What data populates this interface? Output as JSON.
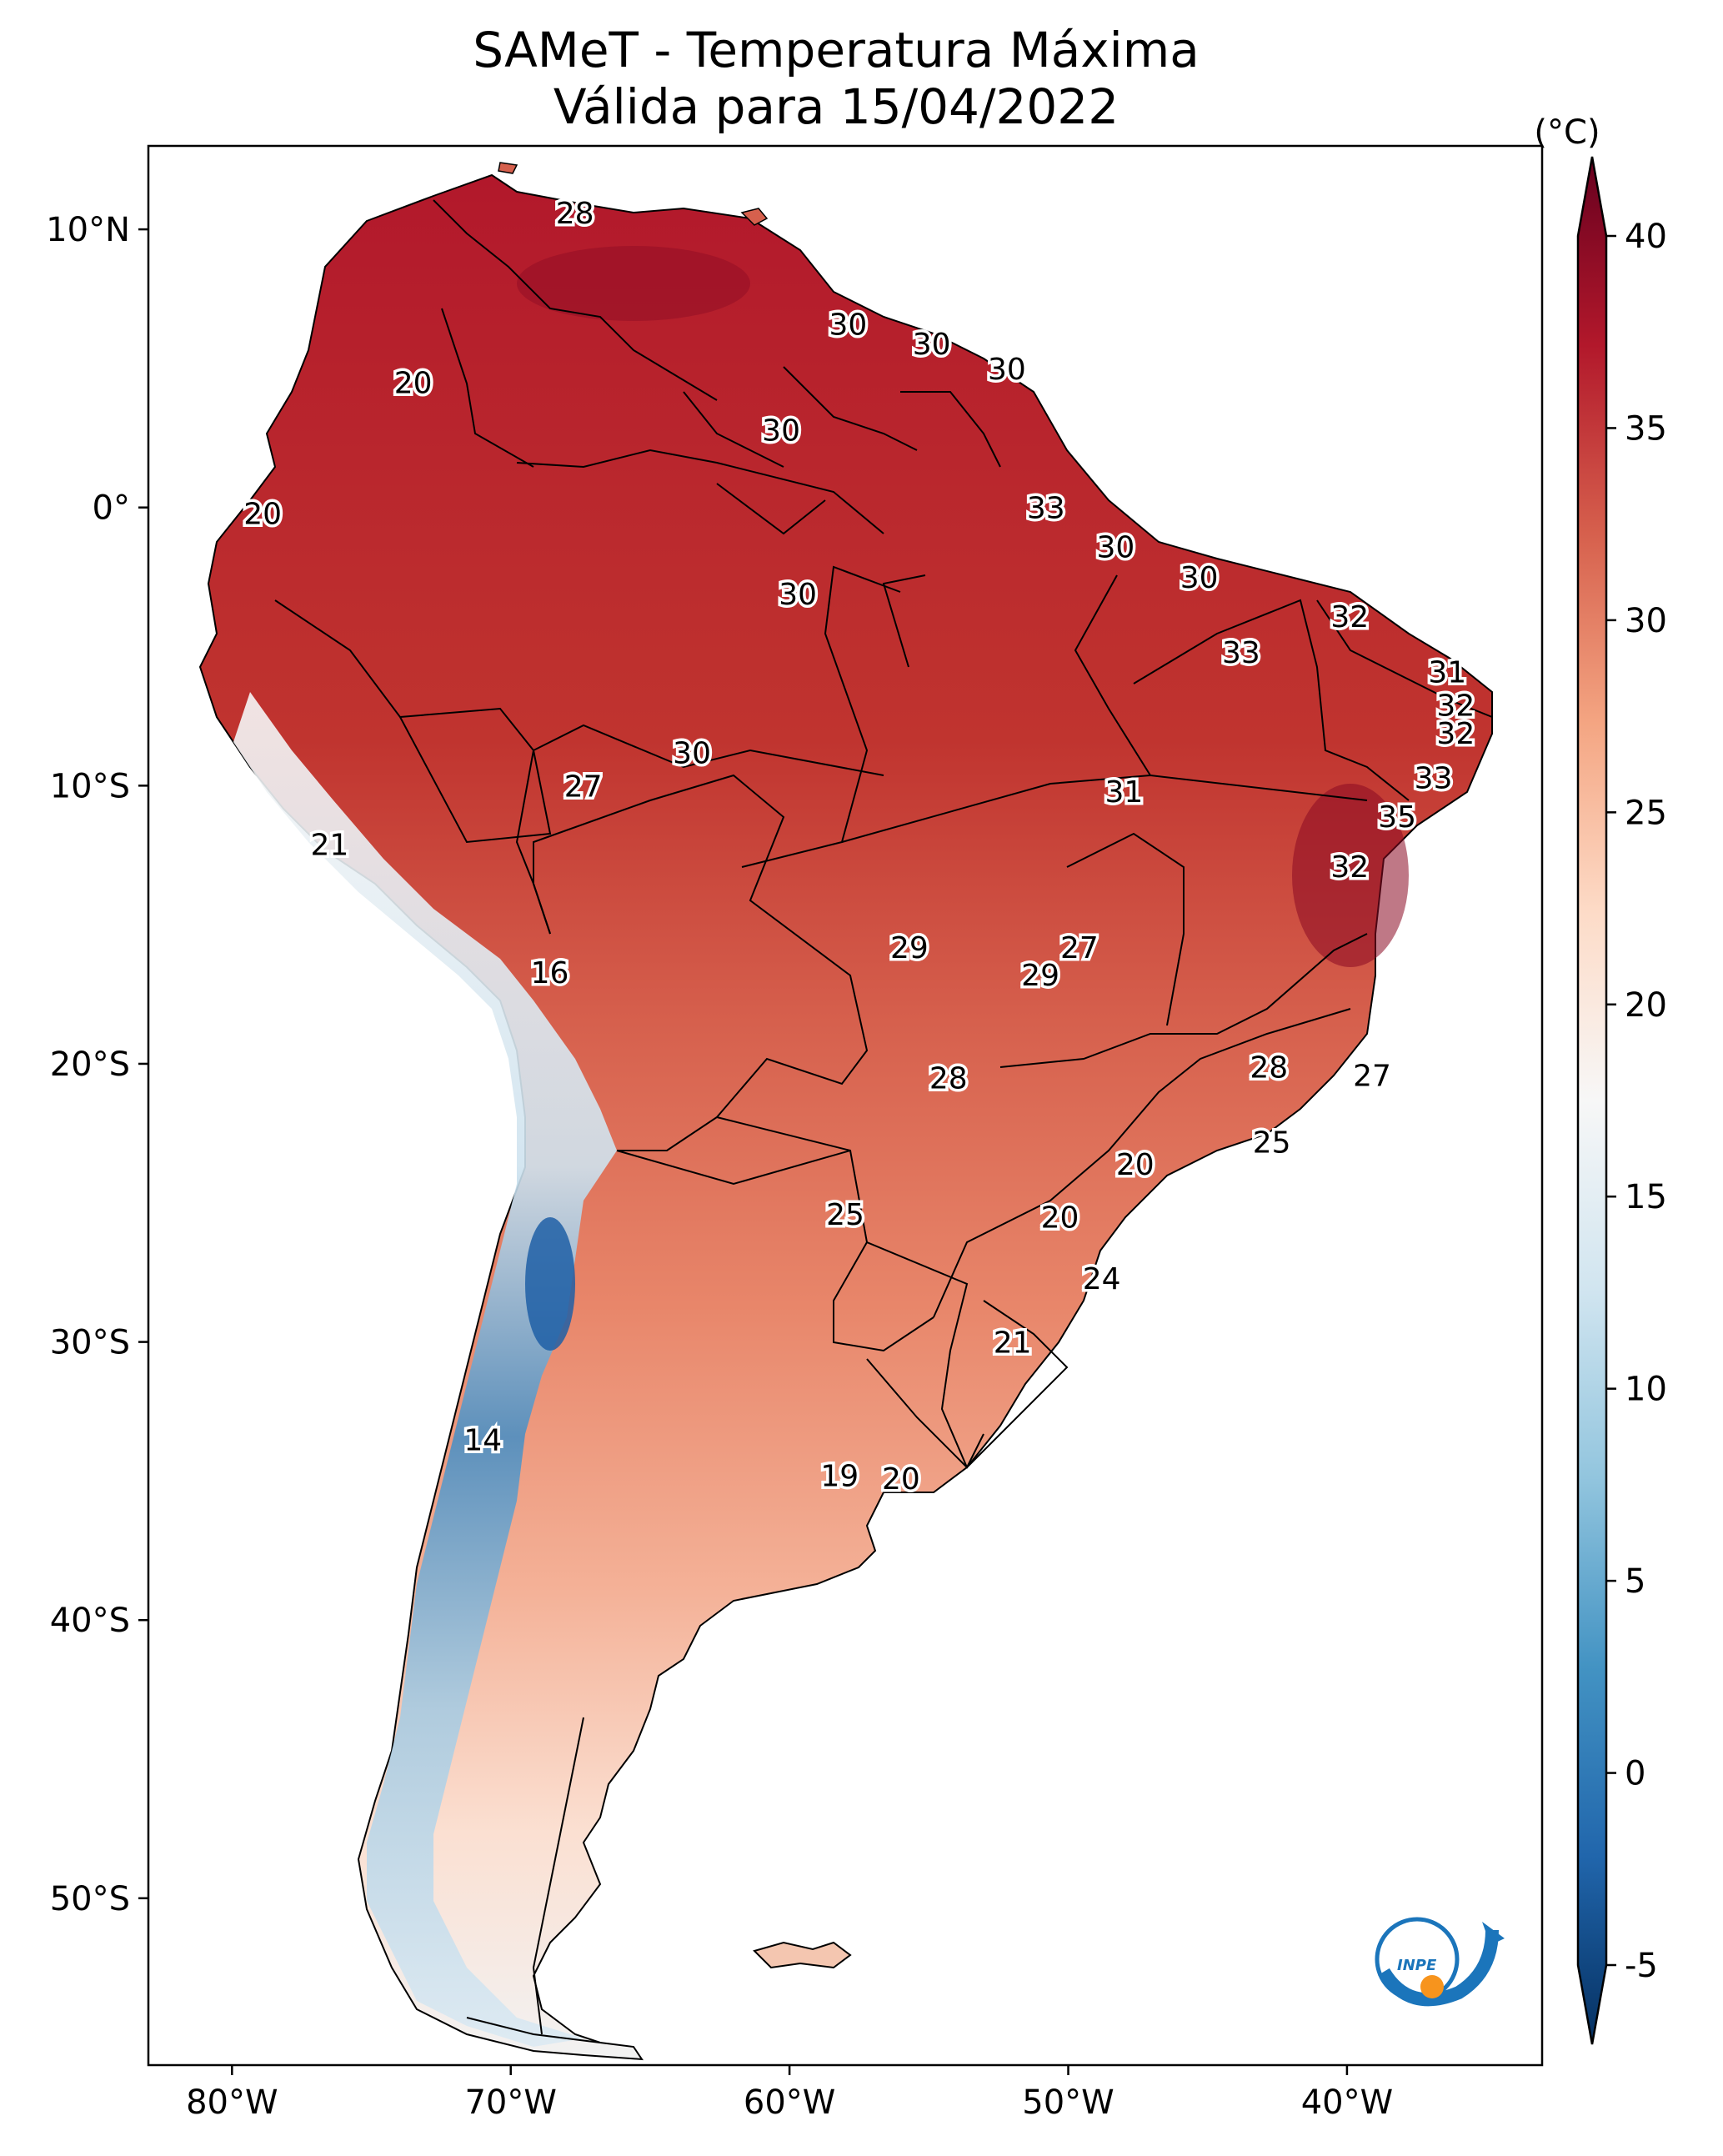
{
  "title": {
    "line1": "SAMeT - Temperatura Máxima",
    "line2": "Válida para 15/04/2022"
  },
  "map": {
    "lat_range": [
      -56,
      13
    ],
    "lon_range": [
      -83,
      -33
    ],
    "lat_ticks": [
      {
        "value": 10,
        "label": "10°N"
      },
      {
        "value": 0,
        "label": "0°"
      },
      {
        "value": -10,
        "label": "10°S"
      },
      {
        "value": -20,
        "label": "20°S"
      },
      {
        "value": -30,
        "label": "30°S"
      },
      {
        "value": -40,
        "label": "40°S"
      },
      {
        "value": -50,
        "label": "50°S"
      }
    ],
    "lon_ticks": [
      {
        "value": -80,
        "label": "80°W"
      },
      {
        "value": -70,
        "label": "70°W"
      },
      {
        "value": -60,
        "label": "60°W"
      },
      {
        "value": -50,
        "label": "50°W"
      },
      {
        "value": -40,
        "label": "40°W"
      }
    ],
    "temperature_labels": [
      {
        "lon": -67.7,
        "lat": 10.6,
        "text": "28"
      },
      {
        "lon": -57.9,
        "lat": 6.6,
        "text": "30"
      },
      {
        "lon": -54.9,
        "lat": 5.9,
        "text": "30"
      },
      {
        "lon": -52.2,
        "lat": 5.0,
        "text": "30"
      },
      {
        "lon": -73.5,
        "lat": 4.5,
        "text": "20"
      },
      {
        "lon": -60.3,
        "lat": 2.8,
        "text": "30"
      },
      {
        "lon": -50.8,
        "lat": 0.0,
        "text": "33"
      },
      {
        "lon": -78.9,
        "lat": -0.2,
        "text": "20"
      },
      {
        "lon": -48.3,
        "lat": -1.4,
        "text": "30"
      },
      {
        "lon": -59.7,
        "lat": -3.1,
        "text": "30"
      },
      {
        "lon": -45.3,
        "lat": -2.5,
        "text": "30"
      },
      {
        "lon": -39.9,
        "lat": -3.9,
        "text": "32"
      },
      {
        "lon": -43.8,
        "lat": -5.2,
        "text": "33"
      },
      {
        "lon": -36.4,
        "lat": -5.9,
        "text": "31"
      },
      {
        "lon": -36.1,
        "lat": -7.1,
        "text": "32"
      },
      {
        "lon": -36.1,
        "lat": -8.1,
        "text": "32"
      },
      {
        "lon": -63.5,
        "lat": -8.8,
        "text": "30"
      },
      {
        "lon": -67.4,
        "lat": -10.0,
        "text": "27"
      },
      {
        "lon": -36.9,
        "lat": -9.7,
        "text": "33"
      },
      {
        "lon": -48.0,
        "lat": -10.2,
        "text": "31"
      },
      {
        "lon": -38.2,
        "lat": -11.1,
        "text": "35"
      },
      {
        "lon": -76.5,
        "lat": -12.1,
        "text": "21"
      },
      {
        "lon": -39.9,
        "lat": -12.9,
        "text": "32"
      },
      {
        "lon": -49.6,
        "lat": -15.8,
        "text": "27"
      },
      {
        "lon": -55.7,
        "lat": -15.8,
        "text": "29"
      },
      {
        "lon": -51.0,
        "lat": -16.8,
        "text": "29"
      },
      {
        "lon": -68.6,
        "lat": -16.7,
        "text": "16"
      },
      {
        "lon": -42.8,
        "lat": -20.1,
        "text": "28"
      },
      {
        "lon": -39.1,
        "lat": -20.4,
        "text": "27"
      },
      {
        "lon": -54.3,
        "lat": -20.5,
        "text": "28"
      },
      {
        "lon": -42.7,
        "lat": -22.8,
        "text": "25"
      },
      {
        "lon": -47.6,
        "lat": -23.6,
        "text": "20"
      },
      {
        "lon": -58.0,
        "lat": -25.4,
        "text": "25"
      },
      {
        "lon": -50.3,
        "lat": -25.5,
        "text": "20"
      },
      {
        "lon": -48.8,
        "lat": -27.7,
        "text": "24"
      },
      {
        "lon": -52.0,
        "lat": -30.0,
        "text": "21"
      },
      {
        "lon": -71.0,
        "lat": -33.5,
        "text": "14"
      },
      {
        "lon": -58.2,
        "lat": -34.8,
        "text": "19"
      },
      {
        "lon": -56.0,
        "lat": -34.9,
        "text": "20"
      }
    ]
  },
  "colorbar": {
    "unit_label": "(°C)",
    "min": -7,
    "max": 43,
    "ticks": [
      {
        "value": 40,
        "label": "40"
      },
      {
        "value": 35,
        "label": "35"
      },
      {
        "value": 30,
        "label": "30"
      },
      {
        "value": 25,
        "label": "25"
      },
      {
        "value": 20,
        "label": "20"
      },
      {
        "value": 15,
        "label": "15"
      },
      {
        "value": 10,
        "label": "10"
      },
      {
        "value": 5,
        "label": "5"
      },
      {
        "value": 0,
        "label": "0"
      },
      {
        "value": -5,
        "label": "-5"
      }
    ],
    "colors": [
      "#053061",
      "#2166ac",
      "#4393c3",
      "#92c5de",
      "#d1e5f0",
      "#f7f7f7",
      "#fddbc7",
      "#f4a582",
      "#d6604d",
      "#b2182b",
      "#67001f"
    ]
  },
  "logo": {
    "text": "INPE",
    "blue": "#1b75bb",
    "orange": "#f7941d"
  }
}
